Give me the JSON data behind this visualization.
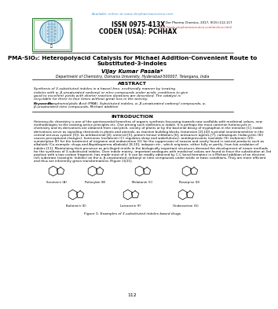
{
  "bg_color": "#ffffff",
  "top_link_text": "Available online at www.derpharmaceutica.com",
  "top_link_color": "#4a90c4",
  "issn_line1": "ISSN 0975-413X",
  "issn_line2": "CODEN (USA): PCHHAX",
  "journal_ref": "Der Pharma Chemica, 2017, 9(15):112-117",
  "journal_url": "http://www.derpharmaceutica.com/archive.html",
  "journal_url_color": "#c0392b",
  "title_line1": "PMA-SiO₂: Heteropolyacid Catalysis for Michael Addition-Convenient Route to",
  "title_line2": "Substituted-3-Indoles",
  "author": "Vijay Kumar Pasala*",
  "affiliation": "Department of Chemistry, Osmania University, Hyderabad-500007, Telangana, India",
  "abstract_title": "ABSTRACT",
  "abstract_text": "Synthesis of 3-substituted indoles in a hassel-free, ecofriendly manner by treating indoles with α, β-unsaturated carbonyl or nitro compounds under acidic conditions to give good to excellent yields with shorter reaction durations are described. The catalyst is recyclable for three to four times without great loss in the activity.",
  "keywords_label": "Keywords:",
  "keywords_text": "Phosphomolybdic Acid (PMA), Substituted indoles, α, β-unsaturated carbonyl compounds, α, β-unsaturated nitro compounds, Michael addition",
  "intro_title": "INTRODUCTION",
  "intro_text_lines": [
    "Heterocyclic chemistry is one of the quintessential branches of organic synthesis focussing towards new scaffolds with medicinal values, new",
    "methodologies to the existing active principles etc. One among such skeletons is indole. It is perhaps the most common heterocycle in",
    "chemistry and its derivatives are obtained from coal pitch, variety of plants or by the bacterial decay of tryptophan in the intestine [1]. Indole",
    "derivatives serve as signaling chemicals in plants and animals, as reaction building blocks (extension [2]-[4]) a pivotal neurotransmitter in the",
    "central nervous system [5]), as antibacterial [4], antiviral [5], protein kinase inhibitors [6], anticancer agents [7], carbazoquin (indacyclen (8))",
    "causes perceptional changes), hormones (melatonin (C) regulates sleep and wakefulness), antidepressants (oxindole (9), bufotenin (10),",
    "sumatriptan (E) for the treatment of migraine and ondansetron (G) for the suppression of nausea and vastly found in natural products such as",
    "alkaloids (Co-example: drugs and Aspidosperma alkaloids) [8-10], indopsin etc., which originate, either fully or partly, from bio-oxidation of",
    "indoles [11]. Maintaining their presence as privileged motifs in the biologically important structures demand the development of newer methods",
    "for the synthesis of 3-substituted indoles. Over indole moiety, important analogues with medicinal values are found to have the substitution at 3rd",
    "position with a two carbon fragment, has made most of it. It can be readily obtained by C-C bond formation in a Michael addition of an electron",
    "rich substrate (example: Indoles) on the α, β-unsaturated carbonyl or nitro compounds under acidic or basic conditions. They are more efficient",
    "and thus are inherently green transformations (Figure 1)[21]."
  ],
  "fig_caption": "Figure 1: Examples of 3-substituted indoles based drugs",
  "page_number": "112",
  "logo_border_color": "#2e7d32",
  "struct_names_top": [
    "Serotonin (A)",
    "Psilocybin (B)",
    "Melatonin (C)",
    "Reserpine (D)"
  ],
  "struct_names_bot": [
    "Bufotenin (E)",
    "Lorcaserin (F)",
    "Ondansetron (G)"
  ]
}
